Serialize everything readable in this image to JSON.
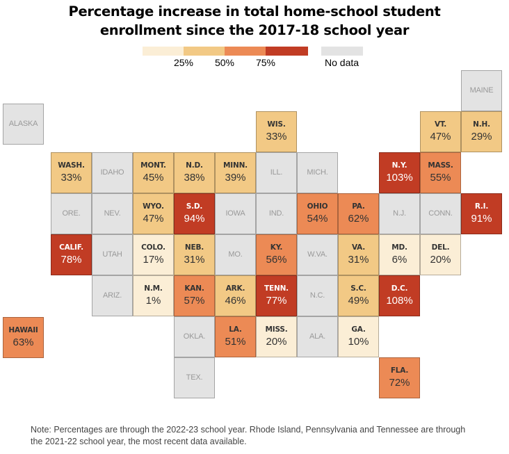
{
  "chart_data": {
    "type": "heatmap",
    "subtype": "tile-grid-map",
    "title": "Percentage increase in total home-school student enrollment since the 2017-18 school year",
    "title_lines": [
      "Percentage increase in total home-school student",
      "enrollment since the 2017-18 school year"
    ],
    "legend": {
      "bins": [
        {
          "range": [
            0,
            25
          ],
          "color": "#FBEED6"
        },
        {
          "range": [
            25,
            50
          ],
          "color": "#F2C985"
        },
        {
          "range": [
            50,
            75
          ],
          "color": "#EC8A55"
        },
        {
          "range": [
            75,
            null
          ],
          "color": "#C13C24"
        }
      ],
      "tick_labels": [
        "25%",
        "50%",
        "75%"
      ],
      "nodata_label": "No data",
      "nodata_color": "#E3E3E3"
    },
    "states": [
      {
        "abbr": "ALASKA",
        "value": null,
        "row": 1,
        "col": -1
      },
      {
        "abbr": "MAINE",
        "value": null,
        "row": 0,
        "col": 10
      },
      {
        "abbr": "WIS.",
        "value": 33,
        "row": 1,
        "col": 5
      },
      {
        "abbr": "VT.",
        "value": 47,
        "row": 1,
        "col": 9
      },
      {
        "abbr": "N.H.",
        "value": 29,
        "row": 1,
        "col": 10
      },
      {
        "abbr": "WASH.",
        "value": 33,
        "row": 2,
        "col": 0
      },
      {
        "abbr": "IDAHO",
        "value": null,
        "row": 2,
        "col": 1
      },
      {
        "abbr": "MONT.",
        "value": 45,
        "row": 2,
        "col": 2
      },
      {
        "abbr": "N.D.",
        "value": 38,
        "row": 2,
        "col": 3
      },
      {
        "abbr": "MINN.",
        "value": 39,
        "row": 2,
        "col": 4
      },
      {
        "abbr": "ILL.",
        "value": null,
        "row": 2,
        "col": 5
      },
      {
        "abbr": "MICH.",
        "value": null,
        "row": 2,
        "col": 6
      },
      {
        "abbr": "N.Y.",
        "value": 103,
        "row": 2,
        "col": 8
      },
      {
        "abbr": "MASS.",
        "value": 55,
        "row": 2,
        "col": 9
      },
      {
        "abbr": "ORE.",
        "value": null,
        "row": 3,
        "col": 0
      },
      {
        "abbr": "NEV.",
        "value": null,
        "row": 3,
        "col": 1
      },
      {
        "abbr": "WYO.",
        "value": 47,
        "row": 3,
        "col": 2
      },
      {
        "abbr": "S.D.",
        "value": 94,
        "row": 3,
        "col": 3
      },
      {
        "abbr": "IOWA",
        "value": null,
        "row": 3,
        "col": 4
      },
      {
        "abbr": "IND.",
        "value": null,
        "row": 3,
        "col": 5
      },
      {
        "abbr": "OHIO",
        "value": 54,
        "row": 3,
        "col": 6
      },
      {
        "abbr": "PA.",
        "value": 62,
        "row": 3,
        "col": 7
      },
      {
        "abbr": "N.J.",
        "value": null,
        "row": 3,
        "col": 8
      },
      {
        "abbr": "CONN.",
        "value": null,
        "row": 3,
        "col": 9
      },
      {
        "abbr": "R.I.",
        "value": 91,
        "row": 3,
        "col": 10
      },
      {
        "abbr": "CALIF.",
        "value": 78,
        "row": 4,
        "col": 0
      },
      {
        "abbr": "UTAH",
        "value": null,
        "row": 4,
        "col": 1
      },
      {
        "abbr": "COLO.",
        "value": 17,
        "row": 4,
        "col": 2
      },
      {
        "abbr": "NEB.",
        "value": 31,
        "row": 4,
        "col": 3
      },
      {
        "abbr": "MO.",
        "value": null,
        "row": 4,
        "col": 4
      },
      {
        "abbr": "KY.",
        "value": 56,
        "row": 4,
        "col": 5
      },
      {
        "abbr": "W.VA.",
        "value": null,
        "row": 4,
        "col": 6
      },
      {
        "abbr": "VA.",
        "value": 31,
        "row": 4,
        "col": 7
      },
      {
        "abbr": "MD.",
        "value": 6,
        "row": 4,
        "col": 8
      },
      {
        "abbr": "DEL.",
        "value": 20,
        "row": 4,
        "col": 9
      },
      {
        "abbr": "ARIZ.",
        "value": null,
        "row": 5,
        "col": 1
      },
      {
        "abbr": "N.M.",
        "value": 1,
        "row": 5,
        "col": 2
      },
      {
        "abbr": "KAN.",
        "value": 57,
        "row": 5,
        "col": 3
      },
      {
        "abbr": "ARK.",
        "value": 46,
        "row": 5,
        "col": 4
      },
      {
        "abbr": "TENN.",
        "value": 77,
        "row": 5,
        "col": 5
      },
      {
        "abbr": "N.C.",
        "value": null,
        "row": 5,
        "col": 6
      },
      {
        "abbr": "S.C.",
        "value": 49,
        "row": 5,
        "col": 7
      },
      {
        "abbr": "D.C.",
        "value": 108,
        "row": 5,
        "col": 8
      },
      {
        "abbr": "HAWAII",
        "value": 63,
        "row": 6,
        "col": -1
      },
      {
        "abbr": "OKLA.",
        "value": null,
        "row": 6,
        "col": 3
      },
      {
        "abbr": "LA.",
        "value": 51,
        "row": 6,
        "col": 4
      },
      {
        "abbr": "MISS.",
        "value": 20,
        "row": 6,
        "col": 5
      },
      {
        "abbr": "ALA.",
        "value": null,
        "row": 6,
        "col": 6
      },
      {
        "abbr": "GA.",
        "value": 10,
        "row": 6,
        "col": 7
      },
      {
        "abbr": "TEX.",
        "value": null,
        "row": 7,
        "col": 3
      },
      {
        "abbr": "FLA.",
        "value": 72,
        "row": 7,
        "col": 8
      }
    ],
    "value_suffix": "%",
    "note": "Note: Percentages are through the 2022-23 school year. Rhode Island, Pennsylvania and Tennessee are through the 2021-22 school year, the most recent data available."
  }
}
